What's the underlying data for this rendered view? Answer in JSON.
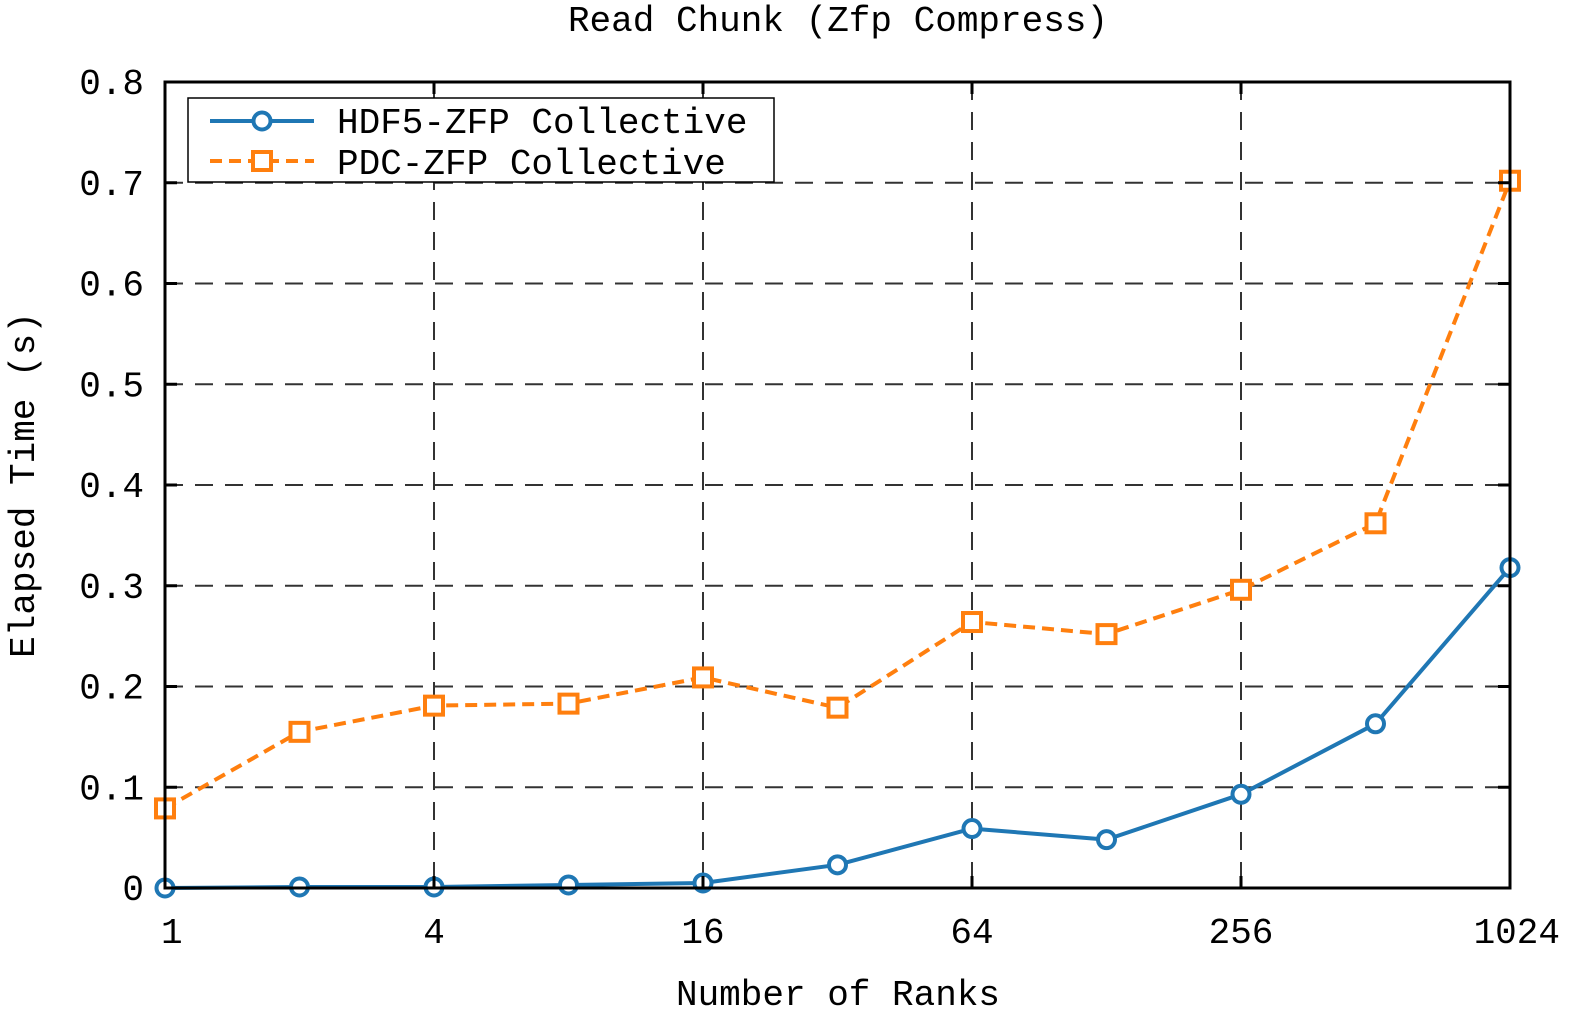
{
  "chart_data": {
    "type": "line",
    "title": "Read Chunk (Zfp Compress)",
    "xlabel": "Number of Ranks",
    "ylabel": "Elapsed Time (s)",
    "x_scale": "log2",
    "x": [
      1,
      2,
      4,
      8,
      16,
      32,
      64,
      128,
      256,
      512,
      1024
    ],
    "xticks": [
      1,
      4,
      16,
      64,
      256,
      1024
    ],
    "xtick_labels": [
      "1",
      "4",
      "16",
      "64",
      "256",
      "1024"
    ],
    "xlim": [
      1,
      1024
    ],
    "ylim": [
      0,
      0.8
    ],
    "yticks": [
      0,
      0.1,
      0.2,
      0.3,
      0.4,
      0.5,
      0.6,
      0.7,
      0.8
    ],
    "ytick_labels": [
      "0",
      "0.1",
      "0.2",
      "0.3",
      "0.4",
      "0.5",
      "0.6",
      "0.7",
      "0.8"
    ],
    "grid": true,
    "legend_position": "top-left",
    "series": [
      {
        "name": "HDF5-ZFP Collective",
        "color": "#1f77b4",
        "marker": "circle",
        "line_style": "solid",
        "values": [
          0.0,
          0.001,
          0.001,
          0.003,
          0.005,
          0.023,
          0.059,
          0.048,
          0.093,
          0.163,
          0.318
        ]
      },
      {
        "name": "PDC-ZFP Collective",
        "color": "#ff7f0e",
        "marker": "square",
        "line_style": "dashed",
        "values": [
          0.079,
          0.155,
          0.181,
          0.183,
          0.209,
          0.179,
          0.264,
          0.252,
          0.296,
          0.362,
          0.702
        ]
      }
    ]
  }
}
